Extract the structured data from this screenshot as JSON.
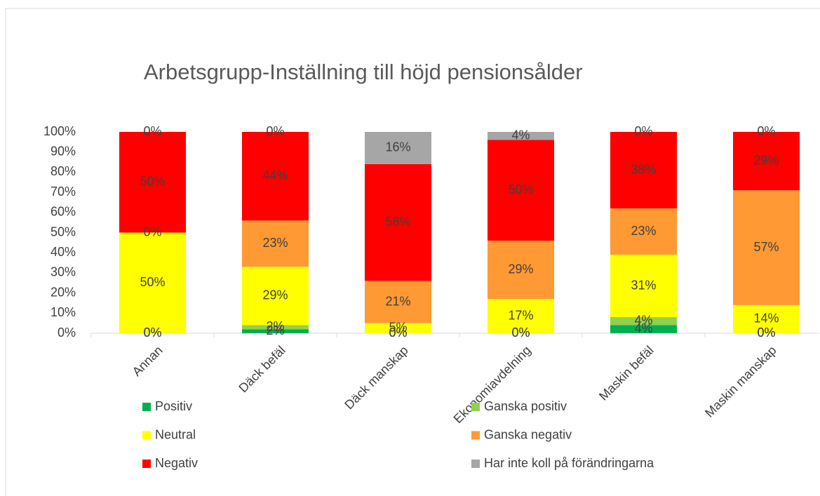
{
  "chart_data": {
    "type": "stacked_bar",
    "title": "Arbetsgrupp-Inställning till höjd pensionsålder",
    "categories": [
      "Annan",
      "Däck befäl",
      "Däck manskap",
      "Ekonomiavdelning",
      "Maskin befäl",
      "Maskin manskap"
    ],
    "series": [
      {
        "name": "Positiv",
        "color": "#00b050",
        "values": [
          0,
          2,
          0,
          0,
          4,
          0
        ],
        "value_labels": [
          "0%",
          "2%",
          "0%",
          "0%",
          "4%",
          "0%"
        ]
      },
      {
        "name": "Ganska positiv",
        "color": "#92d050",
        "values": [
          0,
          2,
          0,
          0,
          4,
          0
        ],
        "value_labels": [
          "0%",
          "2%",
          "0%",
          "0%",
          "4%",
          "0%"
        ]
      },
      {
        "name": "Neutral",
        "color": "#ffff00",
        "values": [
          50,
          29,
          5,
          17,
          31,
          14
        ],
        "value_labels": [
          "50%",
          "29%",
          "5%",
          "17%",
          "31%",
          "14%"
        ]
      },
      {
        "name": "Ganska negativ",
        "color": "#ff9933",
        "values": [
          0,
          23,
          21,
          29,
          23,
          57
        ],
        "value_labels": [
          "0%",
          "23%",
          "21%",
          "29%",
          "23%",
          "57%"
        ]
      },
      {
        "name": "Negativ",
        "color": "#ff0000",
        "values": [
          50,
          44,
          58,
          50,
          38,
          29
        ],
        "value_labels": [
          "50%",
          "44%",
          "58%",
          "50%",
          "38%",
          "29%"
        ]
      },
      {
        "name": "Har inte koll på förändringarna",
        "color": "#a6a6a6",
        "values": [
          0,
          0,
          16,
          4,
          0,
          0
        ],
        "value_labels": [
          "0%",
          "0%",
          "16%",
          "4%",
          "0%",
          "0%"
        ]
      }
    ],
    "ylim": [
      0,
      100
    ],
    "yticks": [
      {
        "value": 0,
        "label": "0%"
      },
      {
        "value": 10,
        "label": "10%"
      },
      {
        "value": 20,
        "label": "20%"
      },
      {
        "value": 30,
        "label": "30%"
      },
      {
        "value": 40,
        "label": "40%"
      },
      {
        "value": 50,
        "label": "50%"
      },
      {
        "value": 60,
        "label": "60%"
      },
      {
        "value": 70,
        "label": "70%"
      },
      {
        "value": 80,
        "label": "80%"
      },
      {
        "value": 90,
        "label": "90%"
      },
      {
        "value": 100,
        "label": "100%"
      }
    ],
    "grid": false
  }
}
